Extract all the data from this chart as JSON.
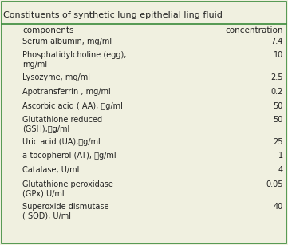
{
  "title": "Constituents of synthetic lung epithelial ling fluid",
  "col1_header": "components",
  "col2_header": "concentration",
  "rows": [
    [
      "Serum albumin, mg/ml",
      "7.4"
    ],
    [
      "Phosphatidylcholine (egg),\nmg/ml",
      "10"
    ],
    [
      "Lysozyme, mg/ml",
      "2.5"
    ],
    [
      "Apotransferrin , mg/ml",
      "0.2"
    ],
    [
      "Ascorbic acid ( AA), 贡g/ml",
      "50"
    ],
    [
      "Glutathione reduced\n(GSH),贡g/ml",
      "50"
    ],
    [
      "Uric acid (UA),贡g/ml",
      "25"
    ],
    [
      "a-tocopherol (AT), 贡g/ml",
      "1"
    ],
    [
      "Catalase, U/ml",
      "4"
    ],
    [
      "Glutathione peroxidase\n(GPx) U/ml",
      "0.05"
    ],
    [
      "Superoxide dismutase\n( SOD), U/ml",
      "40"
    ]
  ],
  "border_color": "#3a8a3a",
  "bg_color": "#f0f0e0",
  "text_color": "#222222",
  "title_fontsize": 8.0,
  "header_fontsize": 7.5,
  "body_fontsize": 7.0,
  "fig_width": 3.61,
  "fig_height": 3.07,
  "dpi": 100
}
